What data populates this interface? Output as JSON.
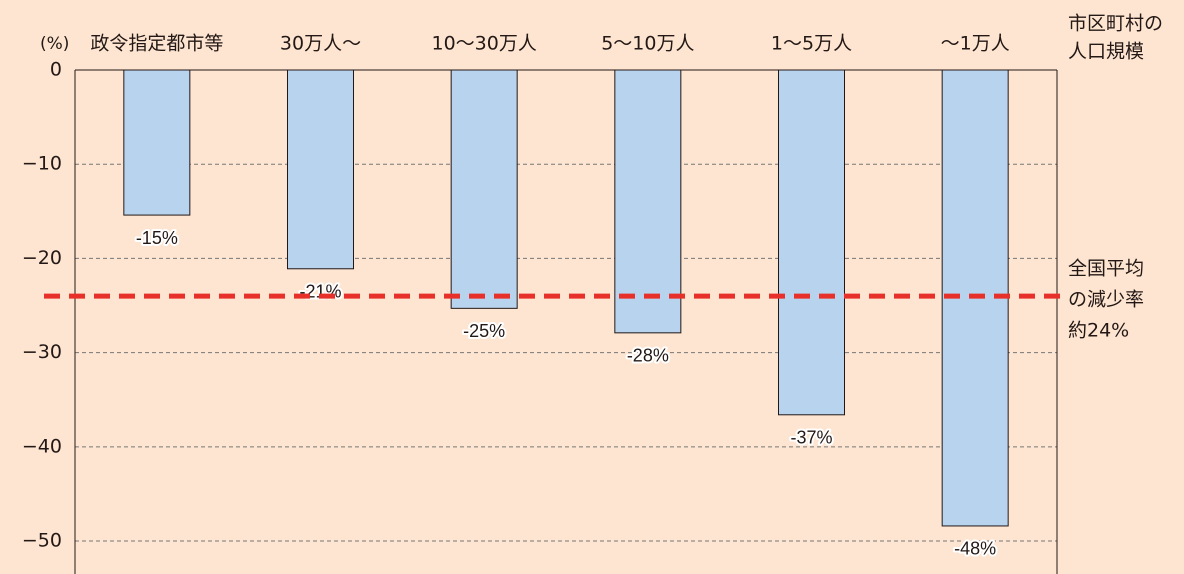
{
  "chart_data": {
    "type": "bar",
    "y_axis_label": "(%)",
    "x_axis_label": [
      "市区町村の",
      "人口規模"
    ],
    "categories": [
      "政令指定都市等",
      "30万人〜",
      "10〜30万人",
      "5〜10万人",
      "1〜5万人",
      "〜1万人"
    ],
    "values": [
      -15.4,
      -21.1,
      -25.3,
      -27.9,
      -36.6,
      -48.4
    ],
    "value_labels": [
      "-15%",
      "-21%",
      "-25%",
      "-28%",
      "-37%",
      "-48%"
    ],
    "color": "#b7d3ee",
    "ylim": [
      -53.5,
      0
    ],
    "yticks": [
      0,
      {
        "value": -10,
        "label": "−10"
      },
      {
        "value": -20,
        "label": "−20"
      },
      {
        "value": -30,
        "label": "−30"
      },
      {
        "value": -40,
        "label": "−40"
      },
      {
        "value": -50,
        "label": "−50"
      }
    ],
    "grid": true,
    "reference_line": {
      "value": -24,
      "color": "#e8302a",
      "label": [
        "全国平均",
        "の減少率",
        "約24%"
      ]
    }
  }
}
